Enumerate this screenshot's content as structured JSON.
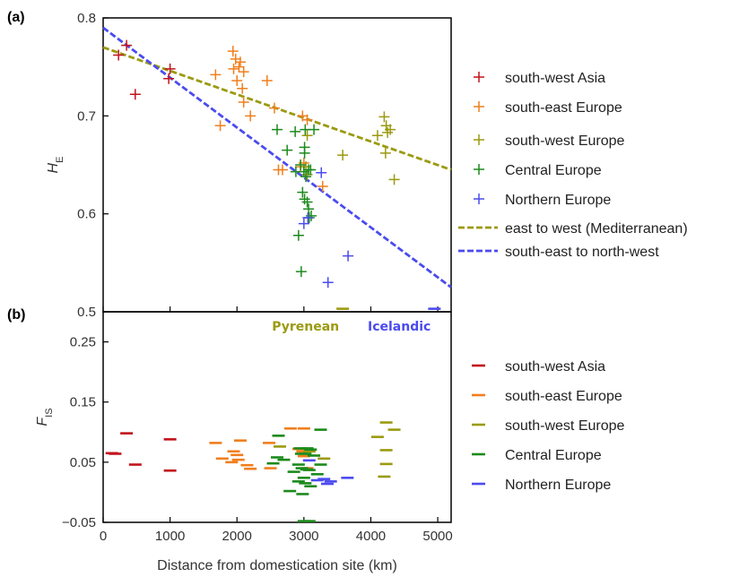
{
  "colors": {
    "south-west Asia": "#c0141c",
    "south-east Europe": "#f07f1e",
    "south-west Europe": "#9b9a10",
    "Central Europe": "#1c8a1c",
    "Northern Europe": "#4b4bef"
  },
  "chart_data": [
    {
      "panel_label": "(a)",
      "type": "scatter",
      "ylabel": "H",
      "ylabel_sub": "E",
      "xlim": [
        0,
        5200
      ],
      "ylim": [
        0.5,
        0.8
      ],
      "yticks": [
        "0.8",
        "0.7",
        "0.6",
        "0.5"
      ],
      "ytick_values": [
        0.8,
        0.7,
        0.6,
        0.5
      ],
      "series": [
        {
          "name": "south-west Asia",
          "marker": "+",
          "points": [
            [
              350,
              0.772
            ],
            [
              230,
              0.762
            ],
            [
              480,
              0.722
            ],
            [
              980,
              0.738
            ],
            [
              1000,
              0.748
            ]
          ]
        },
        {
          "name": "south-east Europe",
          "marker": "+",
          "points": [
            [
              1940,
              0.766
            ],
            [
              1980,
              0.758
            ],
            [
              2050,
              0.755
            ],
            [
              2030,
              0.75
            ],
            [
              2100,
              0.745
            ],
            [
              1950,
              0.748
            ],
            [
              2000,
              0.736
            ],
            [
              2080,
              0.728
            ],
            [
              1680,
              0.742
            ],
            [
              2450,
              0.736
            ],
            [
              2100,
              0.714
            ],
            [
              2200,
              0.7
            ],
            [
              1750,
              0.69
            ],
            [
              2560,
              0.708
            ],
            [
              2980,
              0.7
            ],
            [
              3050,
              0.696
            ],
            [
              2620,
              0.645
            ],
            [
              2680,
              0.645
            ],
            [
              2950,
              0.648
            ],
            [
              3000,
              0.652
            ],
            [
              3280,
              0.628
            ]
          ]
        },
        {
          "name": "south-west Europe",
          "marker": "+",
          "points": [
            [
              4200,
              0.699
            ],
            [
              4230,
              0.69
            ],
            [
              4290,
              0.686
            ],
            [
              4250,
              0.683
            ],
            [
              4100,
              0.68
            ],
            [
              4220,
              0.662
            ],
            [
              3580,
              0.66
            ],
            [
              4350,
              0.635
            ],
            [
              3050,
              0.68
            ],
            [
              3030,
              0.648
            ],
            [
              3050,
              0.64
            ]
          ]
        },
        {
          "name": "Central Europe",
          "marker": "+",
          "points": [
            [
              2600,
              0.686
            ],
            [
              2870,
              0.684
            ],
            [
              3020,
              0.686
            ],
            [
              3150,
              0.686
            ],
            [
              2750,
              0.665
            ],
            [
              3010,
              0.668
            ],
            [
              3010,
              0.662
            ],
            [
              2950,
              0.65
            ],
            [
              3070,
              0.645
            ],
            [
              3100,
              0.645
            ],
            [
              2880,
              0.643
            ],
            [
              3000,
              0.643
            ],
            [
              3030,
              0.638
            ],
            [
              2980,
              0.622
            ],
            [
              3010,
              0.615
            ],
            [
              3050,
              0.612
            ],
            [
              3070,
              0.605
            ],
            [
              3110,
              0.598
            ],
            [
              3080,
              0.596
            ],
            [
              2920,
              0.578
            ],
            [
              2960,
              0.541
            ]
          ]
        },
        {
          "name": "Northern Europe",
          "marker": "+",
          "points": [
            [
              3000,
              0.59
            ],
            [
              3060,
              0.596
            ],
            [
              3260,
              0.642
            ],
            [
              3660,
              0.557
            ],
            [
              3360,
              0.53
            ]
          ]
        },
        {
          "name": "east to west  (Mediterranean)",
          "kind": "line",
          "x": [
            0,
            5200
          ],
          "y": [
            0.77,
            0.645
          ]
        },
        {
          "name": "south-east to north-west",
          "kind": "line",
          "x": [
            0,
            5200
          ],
          "y": [
            0.79,
            0.525
          ]
        }
      ]
    },
    {
      "panel_label": "(b)",
      "type": "scatter",
      "marker": "-",
      "ylabel": "F",
      "ylabel_sub": "IS",
      "xlabel": "Distance from domestication site (km)",
      "xlim": [
        0,
        5200
      ],
      "ylim": [
        -0.05,
        0.3
      ],
      "xticks": [
        "0",
        "1000",
        "2000",
        "3000",
        "4000",
        "5000"
      ],
      "xtick_values": [
        0,
        1000,
        2000,
        3000,
        4000,
        5000
      ],
      "yticks": [
        "0.25",
        "0.15",
        "0.05",
        "−0.05"
      ],
      "ytick_values": [
        0.25,
        0.15,
        0.05,
        -0.05
      ],
      "annotations": [
        {
          "text": "Pyrenean",
          "series": "south-west Europe",
          "x": 3580,
          "y": 0.275
        },
        {
          "text": "Icelandic",
          "series": "Northern Europe",
          "x": 4950,
          "y": 0.275
        }
      ],
      "series": [
        {
          "name": "south-west Asia",
          "points": [
            [
              350,
              0.098
            ],
            [
              1000,
              0.088
            ],
            [
              130,
              0.065
            ],
            [
              180,
              0.064
            ],
            [
              480,
              0.046
            ],
            [
              1000,
              0.036
            ]
          ]
        },
        {
          "name": "south-east Europe",
          "points": [
            [
              1680,
              0.082
            ],
            [
              2050,
              0.086
            ],
            [
              2480,
              0.082
            ],
            [
              2800,
              0.106
            ],
            [
              3000,
              0.106
            ],
            [
              1950,
              0.068
            ],
            [
              2000,
              0.062
            ],
            [
              1780,
              0.056
            ],
            [
              2020,
              0.054
            ],
            [
              1920,
              0.05
            ],
            [
              2150,
              0.045
            ],
            [
              2200,
              0.039
            ],
            [
              2500,
              0.04
            ],
            [
              2920,
              0.072
            ],
            [
              2980,
              0.068
            ],
            [
              3000,
              0.06
            ],
            [
              3050,
              0.04
            ]
          ]
        },
        {
          "name": "south-west Europe",
          "points": [
            [
              3580,
              0.305
            ],
            [
              4230,
              0.116
            ],
            [
              4350,
              0.104
            ],
            [
              4100,
              0.092
            ],
            [
              4230,
              0.07
            ],
            [
              4230,
              0.047
            ],
            [
              3300,
              0.056
            ],
            [
              4200,
              0.026
            ],
            [
              2640,
              0.076
            ],
            [
              3080,
              0.068
            ]
          ]
        },
        {
          "name": "Central Europe",
          "points": [
            [
              2620,
              0.094
            ],
            [
              3250,
              0.104
            ],
            [
              2940,
              0.073
            ],
            [
              3050,
              0.073
            ],
            [
              3100,
              0.071
            ],
            [
              2960,
              0.064
            ],
            [
              3020,
              0.064
            ],
            [
              3150,
              0.061
            ],
            [
              2600,
              0.058
            ],
            [
              2700,
              0.054
            ],
            [
              3250,
              0.046
            ],
            [
              2540,
              0.048
            ],
            [
              2920,
              0.046
            ],
            [
              2970,
              0.04
            ],
            [
              3040,
              0.038
            ],
            [
              3080,
              0.037
            ],
            [
              2850,
              0.034
            ],
            [
              3200,
              0.03
            ],
            [
              3000,
              0.024
            ],
            [
              2920,
              0.018
            ],
            [
              3020,
              0.015
            ],
            [
              3100,
              0.01
            ],
            [
              2790,
              0.002
            ],
            [
              2980,
              -0.003
            ],
            [
              3000,
              -0.048
            ],
            [
              3080,
              -0.048
            ]
          ]
        },
        {
          "name": "Northern Europe",
          "points": [
            [
              4950,
              0.305
            ],
            [
              3080,
              0.053
            ],
            [
              3300,
              0.022
            ],
            [
              3650,
              0.024
            ],
            [
              3200,
              0.02
            ],
            [
              3400,
              0.018
            ],
            [
              3350,
              0.014
            ]
          ]
        }
      ]
    }
  ],
  "legend_a": [
    "south-west Asia",
    "south-east Europe",
    "south-west Europe",
    "Central Europe",
    "Northern Europe",
    "east to west  (Mediterranean)",
    "south-east to north-west"
  ],
  "legend_b": [
    "south-west Asia",
    "south-east Europe",
    "south-west Europe",
    "Central Europe",
    "Northern Europe"
  ]
}
